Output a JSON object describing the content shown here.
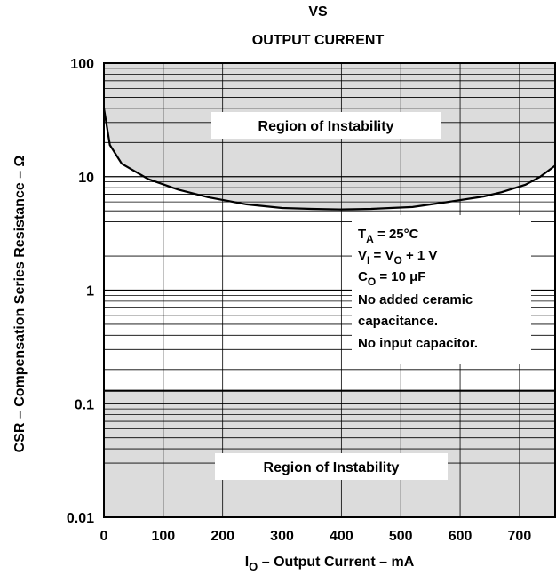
{
  "chart_data": {
    "type": "line",
    "title_lines": [
      "VS",
      "OUTPUT CURRENT"
    ],
    "xlabel": {
      "sym": "I",
      "sub": "O",
      "rest": " – Output Current – mA"
    },
    "ylabel": "CSR – Compensation Series Resistance – Ω",
    "xlim": [
      0,
      760
    ],
    "ylim": [
      0.01,
      100
    ],
    "y_scale": "log",
    "x_ticks": [
      0,
      100,
      200,
      300,
      400,
      500,
      600,
      700
    ],
    "x_tick_labels": [
      "0",
      "100",
      "200",
      "300",
      "400",
      "500",
      "600",
      "700"
    ],
    "y_ticks": [
      0.01,
      0.1,
      1,
      10,
      100
    ],
    "y_tick_labels": [
      "0.01",
      "0.1",
      "1",
      "10",
      "100"
    ],
    "grid": true,
    "upper_boundary": {
      "x": [
        0,
        10,
        30,
        75,
        125,
        175,
        240,
        300,
        350,
        400,
        450,
        520,
        580,
        640,
        670,
        710,
        735,
        760
      ],
      "y": [
        40,
        19,
        13,
        9.5,
        7.7,
        6.6,
        5.7,
        5.3,
        5.2,
        5.15,
        5.2,
        5.4,
        6.0,
        6.7,
        7.3,
        8.5,
        10.0,
        12.5
      ]
    },
    "lower_boundary_y": 0.13,
    "regions": [
      {
        "label": "Region of Instability"
      },
      {
        "label": "Region of Instability"
      }
    ],
    "conditions": [
      {
        "sym": "T",
        "sub": "A",
        "rest": " = 25°C"
      },
      {
        "sym": "V",
        "sub": "I",
        "mid": " = V",
        "sub2": "O",
        "rest": " + 1 V"
      },
      {
        "sym": "C",
        "sub": "O",
        "rest": " = 10 μF"
      },
      {
        "sym": "No added ceramic"
      },
      {
        "sym": "capacitance."
      },
      {
        "sym": "No input capacitor."
      }
    ]
  }
}
